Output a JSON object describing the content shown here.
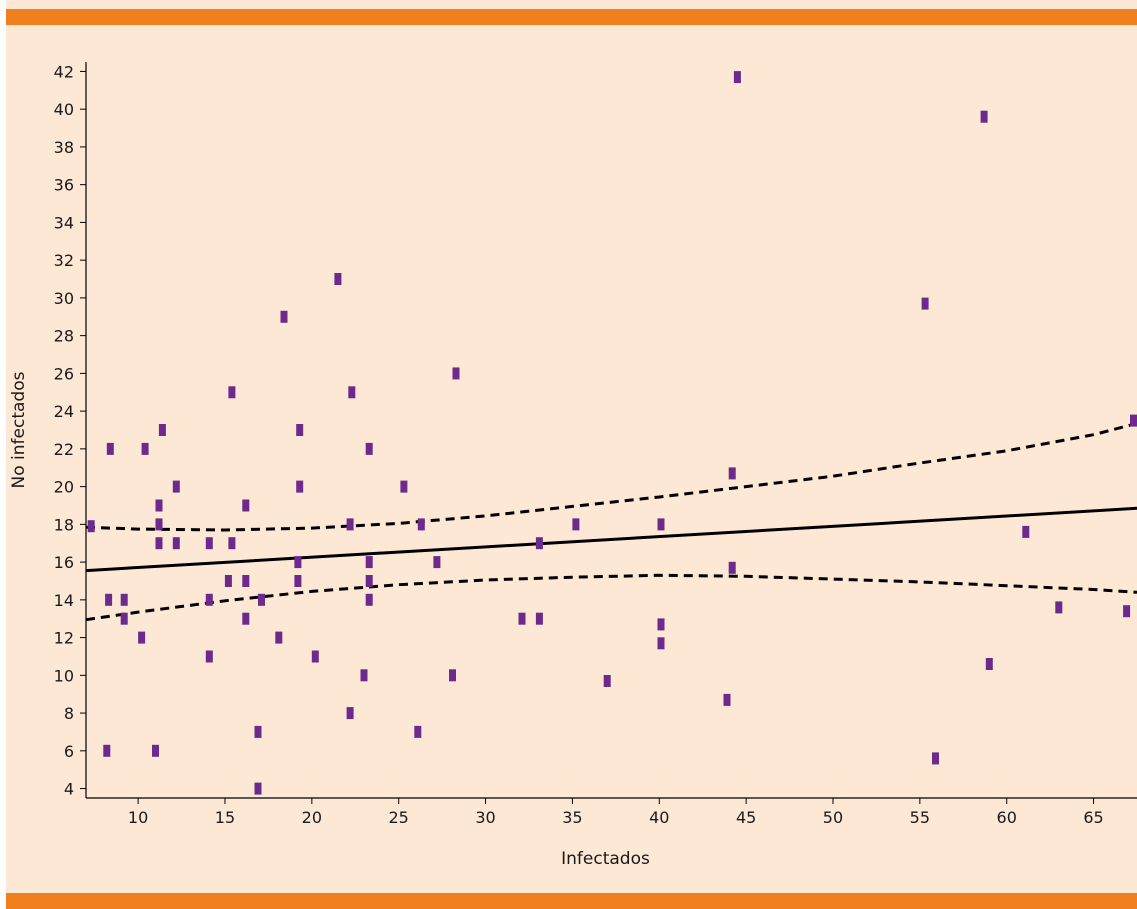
{
  "colors": {
    "background": "#fde8d5",
    "band": "#f07f1e",
    "point": "#6b2a8c",
    "line": "#000000"
  },
  "chart_data": {
    "type": "scatter",
    "title": "",
    "xlabel": "Infectados",
    "ylabel": "No infectados",
    "xlim": [
      7,
      67.5
    ],
    "ylim": [
      3.5,
      42.5
    ],
    "xticks": [
      10,
      15,
      20,
      25,
      30,
      35,
      40,
      45,
      50,
      55,
      60,
      65
    ],
    "yticks": [
      4,
      6,
      8,
      10,
      12,
      14,
      16,
      18,
      20,
      22,
      24,
      26,
      28,
      30,
      32,
      34,
      36,
      38,
      40,
      42
    ],
    "grid": false,
    "legend": "none",
    "points": [
      {
        "x": 7.3,
        "y": 17.9
      },
      {
        "x": 8.2,
        "y": 6
      },
      {
        "x": 8.3,
        "y": 14
      },
      {
        "x": 8.4,
        "y": 22
      },
      {
        "x": 9.2,
        "y": 14
      },
      {
        "x": 9.2,
        "y": 13
      },
      {
        "x": 10.2,
        "y": 12
      },
      {
        "x": 10.4,
        "y": 22
      },
      {
        "x": 11,
        "y": 6
      },
      {
        "x": 11.2,
        "y": 19
      },
      {
        "x": 11.2,
        "y": 18
      },
      {
        "x": 11.2,
        "y": 17
      },
      {
        "x": 11.4,
        "y": 23
      },
      {
        "x": 12.2,
        "y": 20
      },
      {
        "x": 12.2,
        "y": 17
      },
      {
        "x": 14.1,
        "y": 17
      },
      {
        "x": 14.1,
        "y": 14
      },
      {
        "x": 14.1,
        "y": 11
      },
      {
        "x": 15.2,
        "y": 15
      },
      {
        "x": 15.4,
        "y": 25
      },
      {
        "x": 15.4,
        "y": 17
      },
      {
        "x": 16.2,
        "y": 19
      },
      {
        "x": 16.2,
        "y": 15
      },
      {
        "x": 16.2,
        "y": 13
      },
      {
        "x": 16.9,
        "y": 7
      },
      {
        "x": 16.9,
        "y": 4
      },
      {
        "x": 17.1,
        "y": 14
      },
      {
        "x": 18.1,
        "y": 12
      },
      {
        "x": 18.4,
        "y": 29
      },
      {
        "x": 19.2,
        "y": 16
      },
      {
        "x": 19.2,
        "y": 15
      },
      {
        "x": 19.3,
        "y": 23
      },
      {
        "x": 19.3,
        "y": 20
      },
      {
        "x": 20.2,
        "y": 11
      },
      {
        "x": 21.5,
        "y": 31
      },
      {
        "x": 22.2,
        "y": 18
      },
      {
        "x": 22.2,
        "y": 8
      },
      {
        "x": 22.3,
        "y": 25
      },
      {
        "x": 23,
        "y": 10
      },
      {
        "x": 23.3,
        "y": 22
      },
      {
        "x": 23.3,
        "y": 16
      },
      {
        "x": 23.3,
        "y": 15
      },
      {
        "x": 23.3,
        "y": 14
      },
      {
        "x": 25.3,
        "y": 20
      },
      {
        "x": 26.1,
        "y": 7
      },
      {
        "x": 26.3,
        "y": 18
      },
      {
        "x": 27.2,
        "y": 16
      },
      {
        "x": 28.1,
        "y": 10
      },
      {
        "x": 28.3,
        "y": 26
      },
      {
        "x": 32.1,
        "y": 13
      },
      {
        "x": 33.1,
        "y": 17
      },
      {
        "x": 33.1,
        "y": 13
      },
      {
        "x": 35.2,
        "y": 18
      },
      {
        "x": 37,
        "y": 9.7
      },
      {
        "x": 40.1,
        "y": 18
      },
      {
        "x": 40.1,
        "y": 12.7
      },
      {
        "x": 40.1,
        "y": 11.7
      },
      {
        "x": 43.9,
        "y": 8.7
      },
      {
        "x": 44.2,
        "y": 20.7
      },
      {
        "x": 44.2,
        "y": 15.7
      },
      {
        "x": 44.5,
        "y": 41.7
      },
      {
        "x": 55.3,
        "y": 29.7
      },
      {
        "x": 55.9,
        "y": 5.6
      },
      {
        "x": 58.7,
        "y": 39.6
      },
      {
        "x": 59,
        "y": 10.6
      },
      {
        "x": 61.1,
        "y": 17.6
      },
      {
        "x": 63,
        "y": 13.6
      },
      {
        "x": 66.9,
        "y": 13.4
      },
      {
        "x": 67.4,
        "y": 23.5
      }
    ],
    "series": [
      {
        "style": "solid",
        "x": [
          7,
          67.5
        ],
        "y": [
          15.55,
          18.85
        ]
      },
      {
        "style": "dashed",
        "x": [
          7,
          10,
          15,
          20,
          25,
          30,
          35,
          40,
          45,
          50,
          55,
          60,
          65,
          67.5
        ],
        "y": [
          17.85,
          17.75,
          17.7,
          17.8,
          18.05,
          18.45,
          18.95,
          19.45,
          20.0,
          20.55,
          21.25,
          21.9,
          22.75,
          23.35
        ]
      },
      {
        "style": "dashed",
        "x": [
          7,
          10,
          15,
          20,
          25,
          30,
          35,
          40,
          45,
          50,
          55,
          60,
          65,
          67.5
        ],
        "y": [
          12.95,
          13.35,
          13.95,
          14.45,
          14.8,
          15.05,
          15.2,
          15.3,
          15.25,
          15.1,
          14.95,
          14.75,
          14.55,
          14.4
        ]
      }
    ]
  }
}
